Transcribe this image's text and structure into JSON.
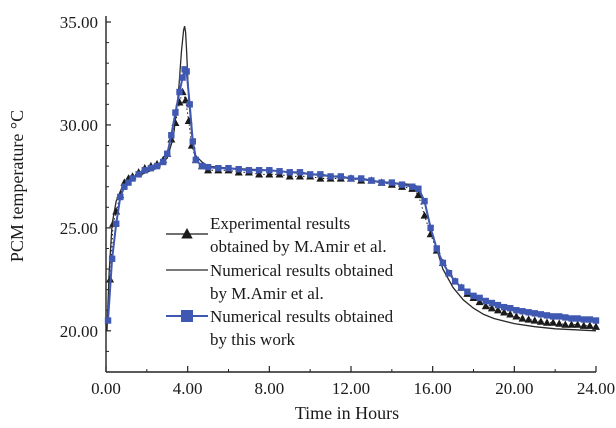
{
  "chart_data": {
    "type": "line",
    "title": "",
    "xlabel": "Time in Hours",
    "ylabel": "PCM temperature °C",
    "xlim": [
      0,
      24
    ],
    "ylim": [
      18,
      35
    ],
    "x_ticks": [
      "0.00",
      "4.00",
      "8.00",
      "12.00",
      "16.00",
      "20.00",
      "24.00"
    ],
    "y_ticks": [
      "20.00",
      "25.00",
      "30.00",
      "35.00"
    ],
    "grid": false,
    "legend_position": "center",
    "series": [
      {
        "name": "Experimental results obtained by M.Amir et al.",
        "legend_lines": [
          "Experimental results",
          "obtained by M.Amir et al."
        ],
        "style": "triangle-markers-dotted",
        "color": "#1a1a1a",
        "x": [
          0.2,
          0.35,
          0.5,
          0.7,
          0.9,
          1.1,
          1.3,
          1.6,
          1.9,
          2.2,
          2.5,
          2.8,
          3.0,
          3.2,
          3.4,
          3.6,
          3.75,
          3.9,
          4.05,
          4.2,
          4.4,
          4.7,
          5.0,
          5.5,
          6.0,
          6.5,
          7.0,
          7.5,
          8.0,
          8.5,
          9.0,
          9.5,
          10.0,
          10.5,
          11.0,
          11.5,
          12.0,
          12.5,
          13.0,
          13.5,
          14.0,
          14.5,
          15.0,
          15.3,
          15.6,
          15.9,
          16.2,
          16.5,
          16.8,
          17.1,
          17.4,
          17.7,
          18.0,
          18.3,
          18.6,
          18.9,
          19.2,
          19.5,
          19.8,
          20.1,
          20.4,
          20.7,
          21.0,
          21.3,
          21.6,
          21.9,
          22.2,
          22.5,
          22.8,
          23.1,
          23.4,
          23.7,
          24.0
        ],
        "y": [
          22.5,
          25.2,
          25.8,
          26.6,
          27.2,
          27.4,
          27.5,
          27.7,
          27.9,
          28.0,
          28.1,
          28.3,
          28.6,
          29.3,
          30.1,
          31.1,
          31.6,
          31.2,
          30.2,
          29.0,
          28.3,
          28.0,
          27.8,
          27.8,
          27.8,
          27.7,
          27.7,
          27.6,
          27.6,
          27.6,
          27.5,
          27.5,
          27.5,
          27.4,
          27.4,
          27.4,
          27.4,
          27.3,
          27.3,
          27.2,
          27.1,
          27.0,
          26.9,
          26.6,
          25.6,
          24.7,
          23.9,
          23.3,
          22.8,
          22.4,
          22.1,
          21.8,
          21.6,
          21.4,
          21.2,
          21.1,
          21.0,
          20.9,
          20.8,
          20.7,
          20.6,
          20.55,
          20.5,
          20.45,
          20.4,
          20.4,
          20.35,
          20.3,
          20.3,
          20.3,
          20.25,
          20.25,
          20.2
        ]
      },
      {
        "name": "Numerical results obtained by M.Amir et al.",
        "legend_lines": [
          "Numerical results obtained",
          "by M.Amir et al."
        ],
        "style": "thin-line",
        "color": "#2a2a2a",
        "x": [
          0.05,
          0.15,
          0.3,
          0.5,
          0.8,
          1.1,
          1.5,
          2.0,
          2.5,
          3.0,
          3.3,
          3.55,
          3.7,
          3.8,
          3.85,
          3.9,
          3.95,
          4.05,
          4.2,
          4.4,
          4.7,
          5.0,
          6.0,
          8.0,
          10.0,
          12.0,
          14.0,
          15.0,
          15.3,
          15.6,
          16.0,
          16.5,
          17.0,
          17.5,
          18.0,
          18.5,
          19.0,
          20.0,
          21.0,
          22.0,
          23.0,
          24.0
        ],
        "y": [
          20.0,
          22.8,
          25.2,
          26.3,
          27.0,
          27.3,
          27.5,
          27.7,
          27.9,
          28.4,
          29.4,
          31.6,
          33.6,
          34.6,
          34.8,
          34.5,
          33.6,
          31.3,
          29.5,
          28.5,
          28.2,
          28.0,
          27.9,
          27.8,
          27.6,
          27.4,
          27.2,
          27.1,
          27.0,
          26.3,
          24.6,
          23.0,
          22.1,
          21.5,
          21.1,
          20.8,
          20.6,
          20.35,
          20.2,
          20.1,
          20.05,
          20.0
        ]
      },
      {
        "name": "Numerical results obtained by this work",
        "legend_lines": [
          "Numerical results obtained",
          "by this work"
        ],
        "style": "line-square-markers",
        "color": "#3f58b2",
        "x": [
          0.1,
          0.3,
          0.5,
          0.7,
          0.9,
          1.1,
          1.3,
          1.6,
          1.9,
          2.2,
          2.5,
          2.8,
          3.0,
          3.2,
          3.4,
          3.6,
          3.75,
          3.85,
          3.95,
          4.1,
          4.25,
          4.4,
          4.7,
          5.0,
          5.5,
          6.0,
          6.5,
          7.0,
          7.5,
          8.0,
          8.5,
          9.0,
          9.5,
          10.0,
          10.5,
          11.0,
          11.5,
          12.0,
          12.5,
          13.0,
          13.5,
          14.0,
          14.5,
          15.0,
          15.3,
          15.6,
          15.9,
          16.2,
          16.5,
          16.8,
          17.1,
          17.4,
          17.7,
          18.0,
          18.3,
          18.6,
          18.9,
          19.2,
          19.5,
          19.8,
          20.1,
          20.4,
          20.7,
          21.0,
          21.3,
          21.6,
          21.9,
          22.2,
          22.5,
          22.8,
          23.1,
          23.4,
          23.7,
          24.0
        ],
        "y": [
          20.5,
          23.5,
          25.2,
          26.5,
          27.0,
          27.2,
          27.4,
          27.6,
          27.8,
          27.9,
          28.0,
          28.2,
          28.6,
          29.5,
          30.6,
          31.6,
          32.3,
          32.7,
          32.6,
          31.0,
          29.2,
          28.3,
          28.0,
          27.95,
          27.9,
          27.9,
          27.85,
          27.8,
          27.8,
          27.8,
          27.75,
          27.7,
          27.7,
          27.6,
          27.6,
          27.5,
          27.5,
          27.4,
          27.4,
          27.3,
          27.2,
          27.2,
          27.1,
          27.0,
          26.9,
          26.3,
          25.0,
          24.0,
          23.3,
          22.8,
          22.4,
          22.1,
          21.9,
          21.7,
          21.6,
          21.45,
          21.35,
          21.25,
          21.15,
          21.1,
          21.0,
          20.95,
          20.9,
          20.85,
          20.8,
          20.75,
          20.7,
          20.7,
          20.65,
          20.6,
          20.6,
          20.55,
          20.55,
          20.5
        ]
      }
    ]
  }
}
